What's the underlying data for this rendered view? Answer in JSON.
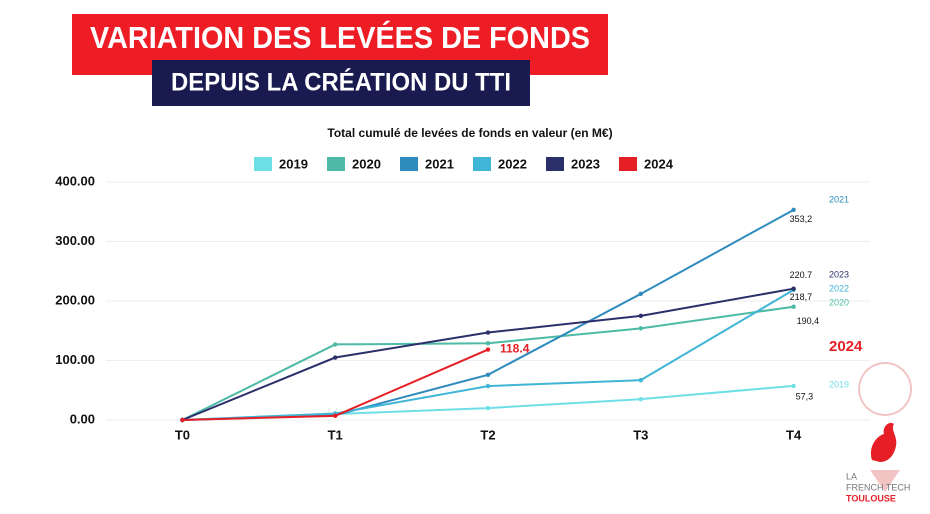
{
  "header": {
    "title": "VARIATION DES LEVÉES DE FONDS",
    "subtitle": "DEPUIS LA CRÉATION DU TTI"
  },
  "logo": {
    "line1": "LA",
    "line2": "FRENCH TECH",
    "line3": "TOULOUSE"
  },
  "chart_data": {
    "type": "line",
    "title": "Total cumulé de levées de fonds en valeur (en M€)",
    "categories": [
      "T0",
      "T1",
      "T2",
      "T3",
      "T4"
    ],
    "series": [
      {
        "name": "2019",
        "color": "#6fdfe6",
        "values": [
          0,
          10,
          20,
          35,
          57.3
        ],
        "value_labels": [
          null,
          null,
          null,
          null,
          "57,3"
        ]
      },
      {
        "name": "2020",
        "color": "#4dbaa5",
        "values": [
          0,
          127,
          129,
          154,
          190.4
        ],
        "value_labels": [
          null,
          null,
          null,
          null,
          "190,4"
        ]
      },
      {
        "name": "2021",
        "color": "#2f8bbd",
        "values": [
          0,
          8,
          76,
          212,
          353.2
        ],
        "value_labels": [
          null,
          null,
          null,
          null,
          "353,2"
        ]
      },
      {
        "name": "2022",
        "color": "#40b5d5",
        "values": [
          0,
          11,
          57,
          67,
          218.7
        ],
        "value_labels": [
          null,
          null,
          null,
          null,
          "218,7"
        ]
      },
      {
        "name": "2023",
        "color": "#2b2f6a",
        "values": [
          0,
          105,
          147,
          175,
          220.7
        ],
        "value_labels": [
          null,
          null,
          null,
          null,
          "220.7"
        ]
      },
      {
        "name": "2024",
        "color": "#e61f27",
        "values": [
          0,
          7,
          118.4,
          null,
          null
        ],
        "value_labels": [
          null,
          null,
          "118.4",
          null,
          null
        ]
      }
    ],
    "ylim": [
      0,
      400
    ],
    "yticks": [
      {
        "value": 0,
        "label": "0.00"
      },
      {
        "value": 100,
        "label": "100.00"
      },
      {
        "value": 200,
        "label": "200.00"
      },
      {
        "value": 300,
        "label": "300.00"
      },
      {
        "value": 400,
        "label": "400.00"
      }
    ],
    "grid": true,
    "legend": "top"
  }
}
